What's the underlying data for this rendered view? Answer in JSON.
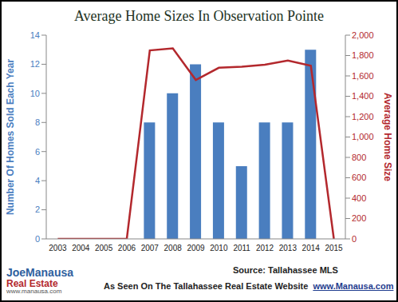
{
  "chart_data": {
    "type": "bar",
    "title": "Average Home Sizes In Observation Pointe",
    "categories": [
      "2003",
      "2004",
      "2005",
      "2006",
      "2007",
      "2008",
      "2009",
      "2010",
      "2011",
      "2012",
      "2013",
      "2014",
      "2015"
    ],
    "series": [
      {
        "name": "Number Of Homes Sold Each Year",
        "type": "bar",
        "color": "#4a7ebf",
        "values": [
          0,
          0,
          0,
          0,
          8,
          10,
          12,
          8,
          5,
          8,
          8,
          13,
          0
        ]
      },
      {
        "name": "Average Home Size",
        "type": "line",
        "color": "#b3282d",
        "axis": "y2",
        "values": [
          0,
          0,
          0,
          0,
          1850,
          1870,
          1560,
          1680,
          1690,
          1710,
          1750,
          1700,
          0
        ]
      }
    ],
    "ylabel": "Number Of Homes Sold Each Year",
    "y2label": "Average Home Size",
    "ylim": [
      0,
      14
    ],
    "yticks": [
      0,
      2,
      4,
      6,
      8,
      10,
      12,
      14
    ],
    "y2lim": [
      0,
      2000
    ],
    "y2ticks": [
      0,
      200,
      400,
      600,
      800,
      {
        "value": 1000,
        "label": "1,000"
      },
      {
        "value": 1200,
        "label": "1,200"
      },
      {
        "value": 1400,
        "label": "1,400"
      },
      {
        "value": 1600,
        "label": "1,600"
      },
      {
        "value": 1800,
        "label": "1,800"
      },
      {
        "value": 2000,
        "label": "2,000"
      }
    ],
    "grid": false,
    "annotations": [
      "JoeManausa",
      "Real Estate",
      "www.manausa.com",
      "Source: Tallahassee MLS",
      "As Seen On The Tallahassee Real Estate Website",
      "www.Manausa.com"
    ]
  }
}
